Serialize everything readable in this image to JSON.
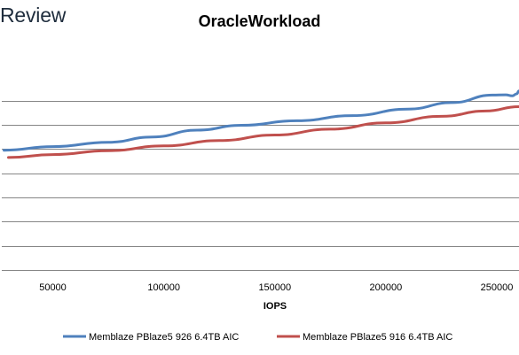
{
  "header": {
    "brand": "Review"
  },
  "chart_data": {
    "type": "line",
    "title": "OracleWorkload",
    "xlabel": "IOPS",
    "ylabel": "",
    "xlim": [
      27000,
      260000
    ],
    "ylim": [
      0,
      10.5
    ],
    "x_ticks": [
      {
        "value": 50000,
        "label": "50000"
      },
      {
        "value": 100000,
        "label": "100000"
      },
      {
        "value": 150000,
        "label": "150000"
      },
      {
        "value": 200000,
        "label": "200000"
      },
      {
        "value": 250000,
        "label": "250000"
      }
    ],
    "y_gridlines": [
      0,
      1,
      2,
      3,
      4,
      5,
      6,
      7
    ],
    "grid": true,
    "legend_position": "bottom",
    "series": [
      {
        "name": "Memblaze PBlaze5 926 6.4TB AIC",
        "color": "#4f81bd",
        "points": [
          [
            28000,
            4.95
          ],
          [
            50000,
            5.1
          ],
          [
            75000,
            5.28
          ],
          [
            95000,
            5.5
          ],
          [
            115000,
            5.78
          ],
          [
            135000,
            5.98
          ],
          [
            160000,
            6.17
          ],
          [
            185000,
            6.38
          ],
          [
            210000,
            6.65
          ],
          [
            230000,
            6.92
          ],
          [
            248000,
            7.23
          ],
          [
            254000,
            7.24
          ],
          [
            257000,
            7.2
          ],
          [
            259000,
            7.28
          ],
          [
            260000,
            7.4
          ]
        ]
      },
      {
        "name": "Memblaze PBlaze5 916 6.4TB AIC",
        "color": "#c0504d",
        "points": [
          [
            30000,
            4.65
          ],
          [
            50000,
            4.77
          ],
          [
            75000,
            4.93
          ],
          [
            100000,
            5.13
          ],
          [
            125000,
            5.35
          ],
          [
            150000,
            5.58
          ],
          [
            175000,
            5.82
          ],
          [
            200000,
            6.08
          ],
          [
            225000,
            6.35
          ],
          [
            245000,
            6.57
          ],
          [
            260000,
            6.75
          ]
        ]
      }
    ]
  }
}
